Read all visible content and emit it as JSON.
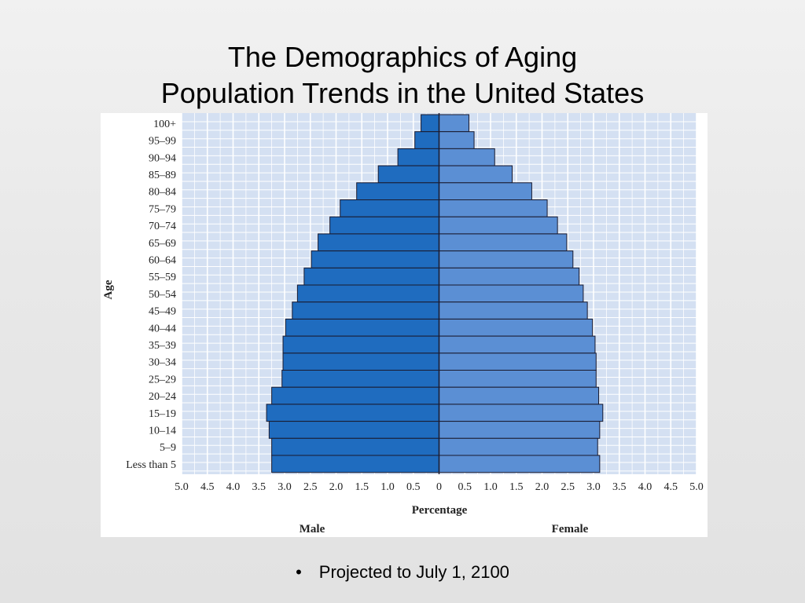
{
  "slide": {
    "title_line1": "The Demographics of Aging",
    "title_line2": "Population Trends in the United States",
    "bullet_mark": "•",
    "bullet_text": "Projected to July 1, 2100"
  },
  "chart_data": {
    "type": "bar",
    "orientation": "horizontal-population-pyramid",
    "ylabel": "Age",
    "xlabel": "Percentage",
    "categories": [
      "100+",
      "95–99",
      "90–94",
      "85–89",
      "80–84",
      "75–79",
      "70–74",
      "65–69",
      "60–64",
      "55–59",
      "50–54",
      "45–49",
      "40–44",
      "35–39",
      "30–34",
      "25–29",
      "20–24",
      "15–19",
      "10–14",
      "5–9",
      "Less than 5"
    ],
    "series": [
      {
        "name": "Male",
        "color": "#1f6cbf",
        "values": [
          0.35,
          0.47,
          0.8,
          1.18,
          1.6,
          1.92,
          2.12,
          2.35,
          2.48,
          2.62,
          2.75,
          2.85,
          2.98,
          3.03,
          3.03,
          3.05,
          3.25,
          3.35,
          3.3,
          3.25,
          3.25
        ]
      },
      {
        "name": "Female",
        "color": "#5b8fd4",
        "values": [
          0.58,
          0.68,
          1.08,
          1.42,
          1.8,
          2.1,
          2.3,
          2.48,
          2.6,
          2.72,
          2.8,
          2.88,
          2.98,
          3.03,
          3.05,
          3.05,
          3.1,
          3.18,
          3.12,
          3.08,
          3.12
        ]
      }
    ],
    "xlim": [
      -5.0,
      5.0
    ],
    "xticks": [
      -5.0,
      -4.5,
      -4.0,
      -3.5,
      -3.0,
      -2.5,
      -2.0,
      -1.5,
      -1.0,
      -0.5,
      0,
      0.5,
      1.0,
      1.5,
      2.0,
      2.5,
      3.0,
      3.5,
      4.0,
      4.5,
      5.0
    ],
    "xtick_labels": [
      "5.0",
      "4.5",
      "4.0",
      "3.5",
      "3.0",
      "2.5",
      "2.0",
      "1.5",
      "1.0",
      "0.5",
      "0",
      "0.5",
      "1.0",
      "1.5",
      "2.0",
      "2.5",
      "3.0",
      "3.5",
      "4.0",
      "4.5",
      "5.0"
    ],
    "grid": true,
    "plot_background": "#d4e0f2",
    "legend_labels": {
      "left": "Male",
      "right": "Female"
    }
  }
}
